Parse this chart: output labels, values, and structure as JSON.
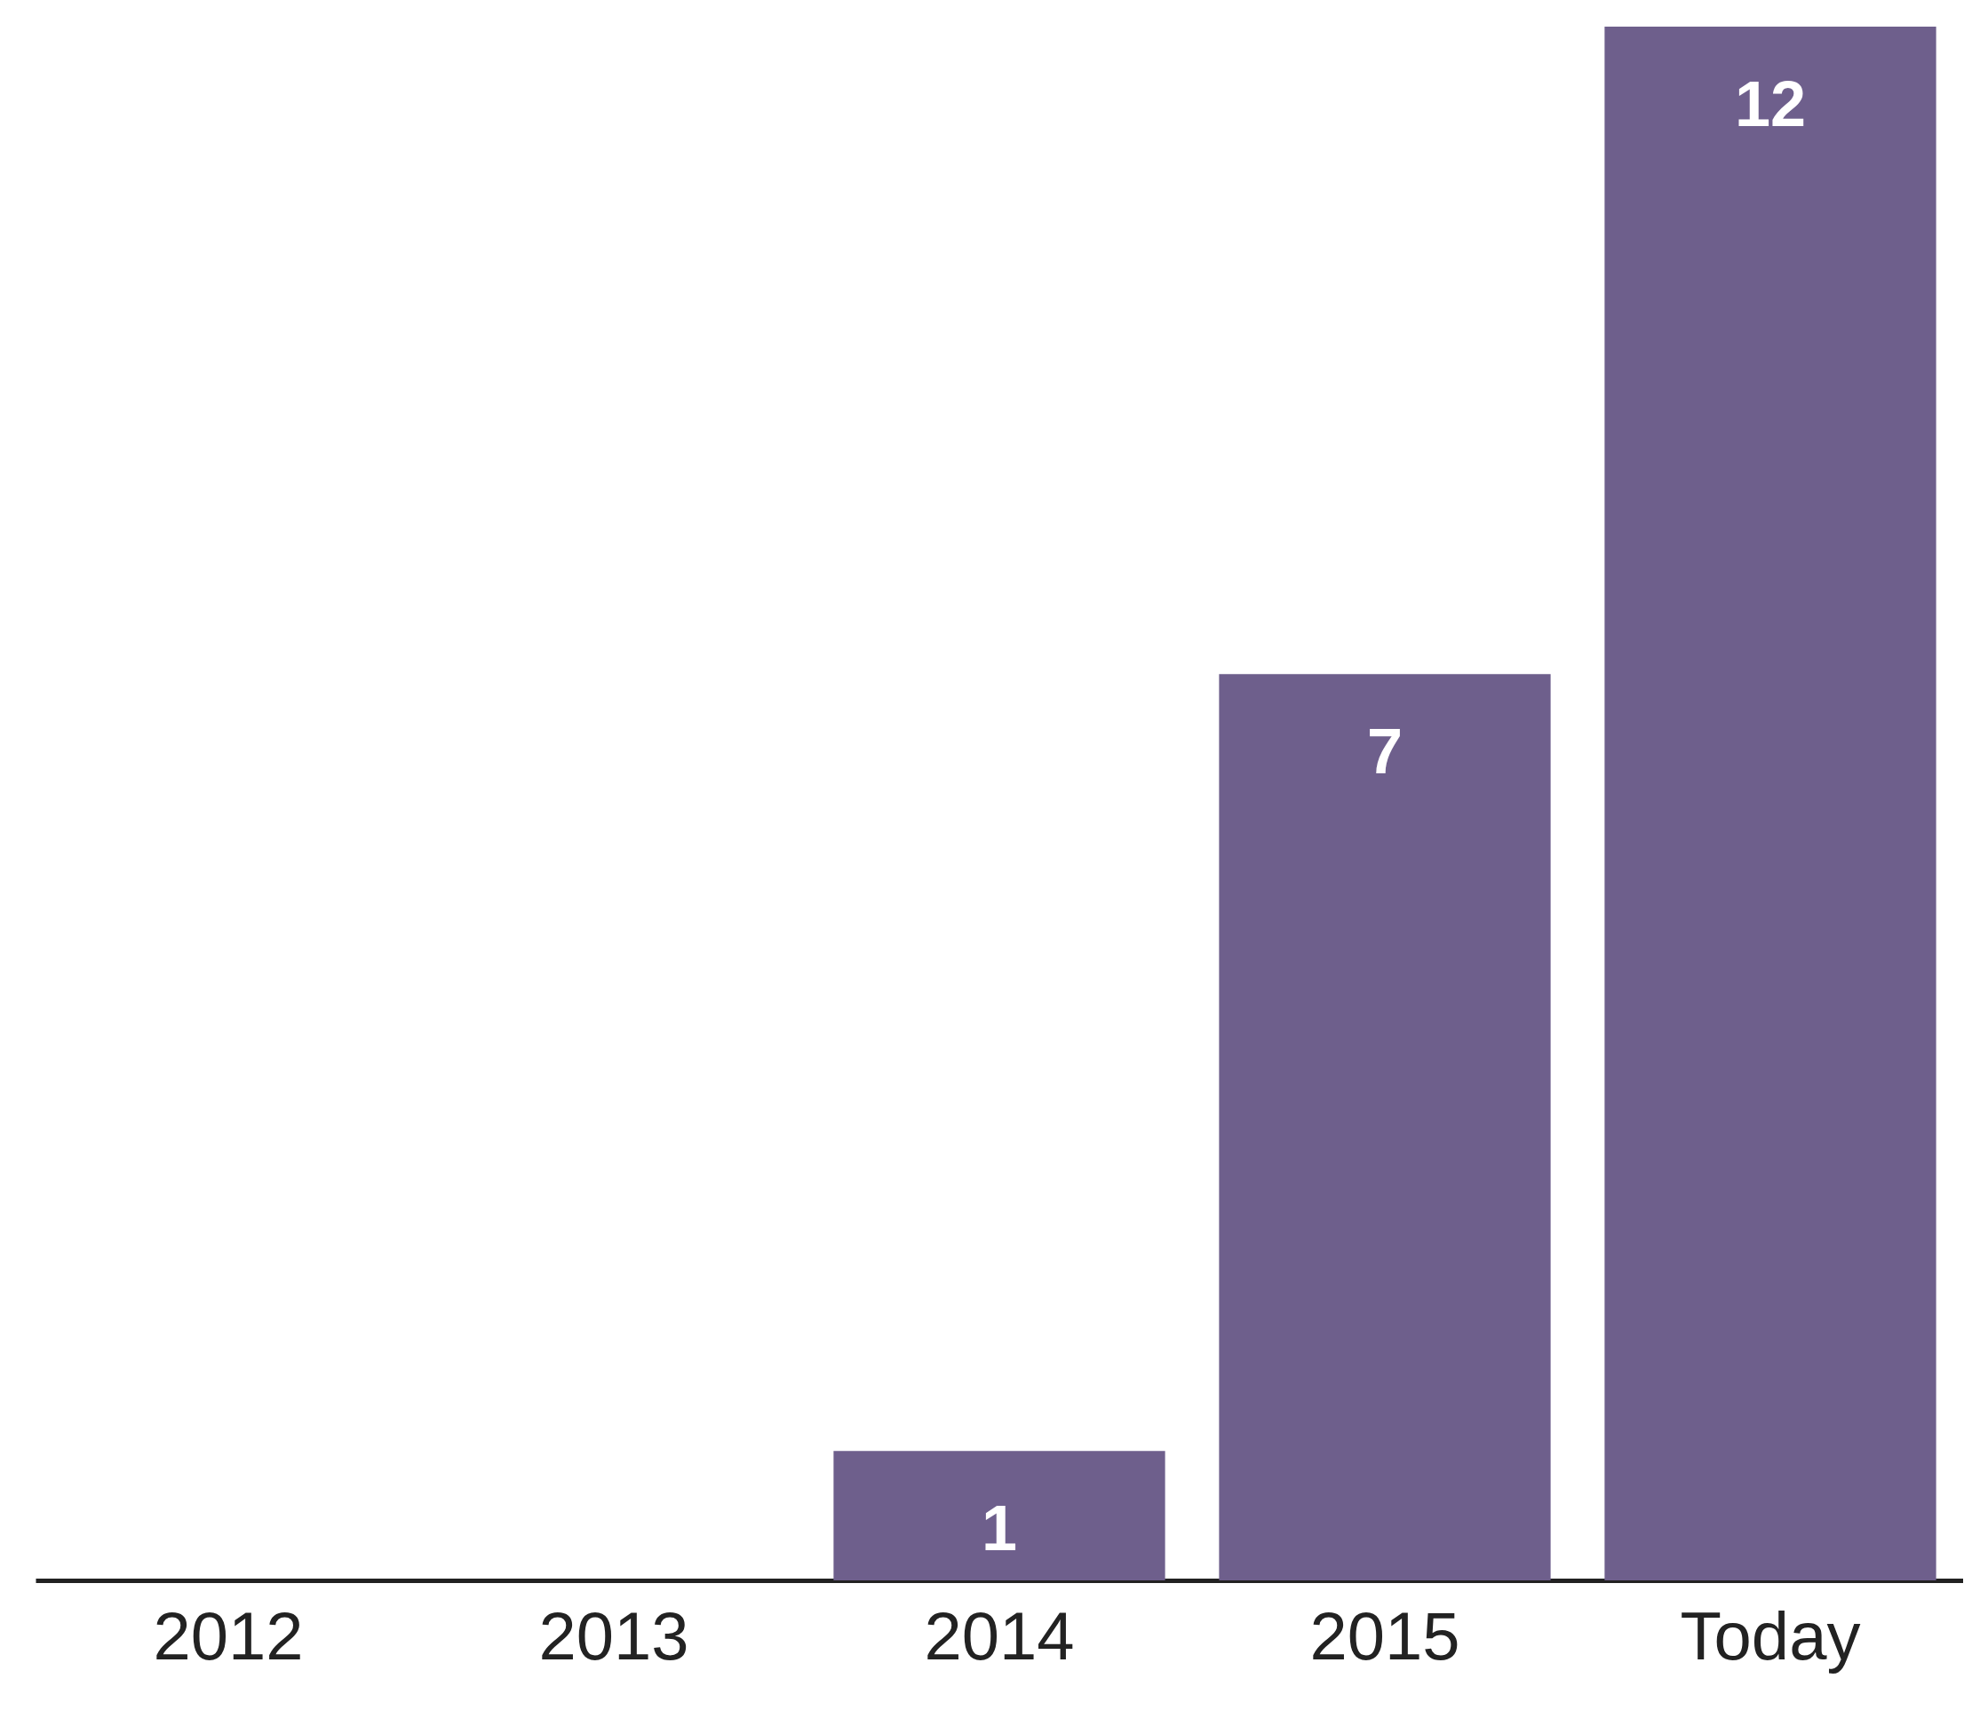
{
  "chart_data": {
    "type": "bar",
    "categories": [
      "2012",
      "2013",
      "2014",
      "2015",
      "Today"
    ],
    "values": [
      0,
      0,
      1,
      7,
      12
    ],
    "color": "#6e5f8c",
    "value_labels": [
      null,
      null,
      "1",
      "7",
      "12"
    ],
    "ylim": [
      0,
      12
    ],
    "tick_labels": "x",
    "grid": false
  }
}
